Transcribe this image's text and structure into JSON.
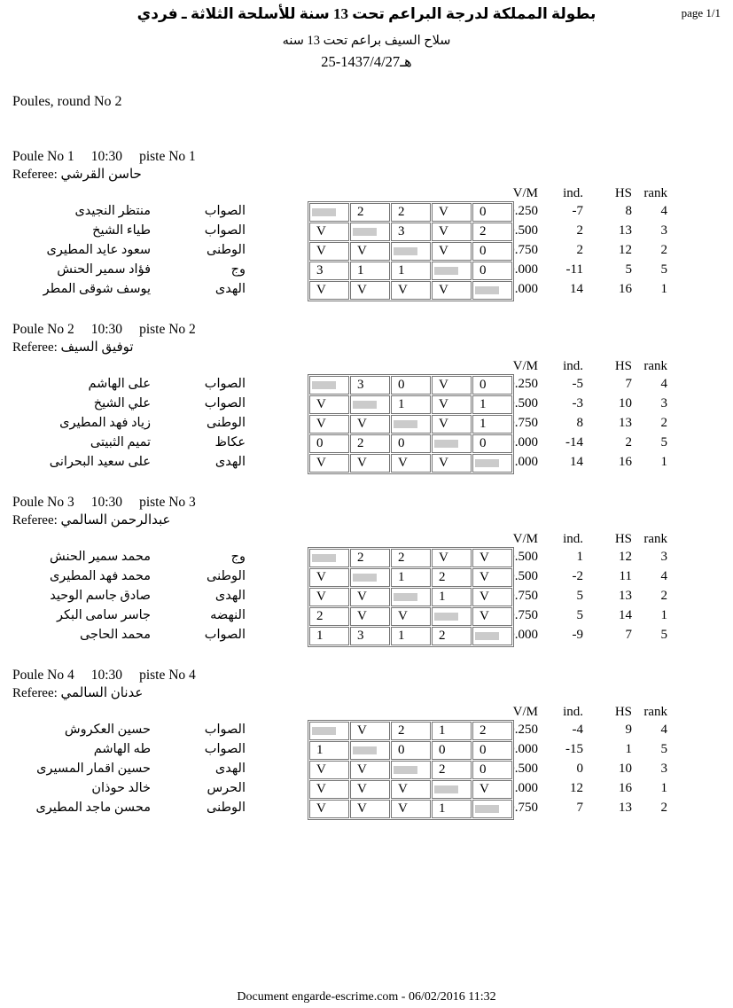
{
  "page": {
    "page_label": "page 1/1",
    "title_line1": "بطولة المملكة لدرجة البراعم تحت 13 سنة للأسلحة الثلاثة ـ فردي",
    "title_line2": "سلاح السيف براعم تحت 13 سنه",
    "title_line3": "هـ1437/4/27-25",
    "section_title": "Poules, round No 2",
    "footer": "Document engarde-escrime.com  - 06/02/2016 11:32"
  },
  "colors": {
    "self_cell_fill": "#cbcbcb",
    "grid_border": "#757575",
    "text": "#000000",
    "background": "#ffffff"
  },
  "stats_headers": [
    "V/M",
    "ind.",
    "HS",
    "rank"
  ],
  "poules": [
    {
      "title": "Poule No 1",
      "time": "10:30",
      "piste": "piste No  1",
      "referee_label": "Referee:",
      "referee": "حاسن القرشي",
      "fencers": [
        {
          "name": "منتظر النجيدى",
          "club": "الصواب",
          "scores": [
            null,
            "2",
            "2",
            "V",
            "0"
          ],
          "vm": "0.250",
          "ind": "-7",
          "hs": "8",
          "rank": "4"
        },
        {
          "name": "طياء الشيخ",
          "club": "الصواب",
          "scores": [
            "V",
            null,
            "3",
            "V",
            "2"
          ],
          "vm": "0.500",
          "ind": "2",
          "hs": "13",
          "rank": "3"
        },
        {
          "name": "سعود عايد المطيرى",
          "club": "الوطنى",
          "scores": [
            "V",
            "V",
            null,
            "V",
            "0"
          ],
          "vm": "0.750",
          "ind": "2",
          "hs": "12",
          "rank": "2"
        },
        {
          "name": "فؤاد سمير الحنش",
          "club": "وج",
          "scores": [
            "3",
            "1",
            "1",
            null,
            "0"
          ],
          "vm": "0.000",
          "ind": "-11",
          "hs": "5",
          "rank": "5"
        },
        {
          "name": "يوسف شوقى المطر",
          "club": "الهدى",
          "scores": [
            "V",
            "V",
            "V",
            "V",
            null
          ],
          "vm": "1.000",
          "ind": "14",
          "hs": "16",
          "rank": "1"
        }
      ]
    },
    {
      "title": "Poule No 2",
      "time": "10:30",
      "piste": "piste No  2",
      "referee_label": "Referee:",
      "referee": "توفيق السيف",
      "fencers": [
        {
          "name": "على الهاشم",
          "club": "الصواب",
          "scores": [
            null,
            "3",
            "0",
            "V",
            "0"
          ],
          "vm": "0.250",
          "ind": "-5",
          "hs": "7",
          "rank": "4"
        },
        {
          "name": "علي الشيخ",
          "club": "الصواب",
          "scores": [
            "V",
            null,
            "1",
            "V",
            "1"
          ],
          "vm": "0.500",
          "ind": "-3",
          "hs": "10",
          "rank": "3"
        },
        {
          "name": "زياد فهد المطيرى",
          "club": "الوطنى",
          "scores": [
            "V",
            "V",
            null,
            "V",
            "1"
          ],
          "vm": "0.750",
          "ind": "8",
          "hs": "13",
          "rank": "2"
        },
        {
          "name": "تميم الثبيتى",
          "club": "عكاظ",
          "scores": [
            "0",
            "2",
            "0",
            null,
            "0"
          ],
          "vm": "0.000",
          "ind": "-14",
          "hs": "2",
          "rank": "5"
        },
        {
          "name": "على سعيد البحرانى",
          "club": "الهدى",
          "scores": [
            "V",
            "V",
            "V",
            "V",
            null
          ],
          "vm": "1.000",
          "ind": "14",
          "hs": "16",
          "rank": "1"
        }
      ]
    },
    {
      "title": "Poule No 3",
      "time": "10:30",
      "piste": "piste No  3",
      "referee_label": "Referee:",
      "referee": "عبدالرحمن السالمي",
      "fencers": [
        {
          "name": "محمد سمير الحنش",
          "club": "وج",
          "scores": [
            null,
            "2",
            "2",
            "V",
            "V"
          ],
          "vm": "0.500",
          "ind": "1",
          "hs": "12",
          "rank": "3"
        },
        {
          "name": "محمد فهد المطيرى",
          "club": "الوطنى",
          "scores": [
            "V",
            null,
            "1",
            "2",
            "V"
          ],
          "vm": "0.500",
          "ind": "-2",
          "hs": "11",
          "rank": "4"
        },
        {
          "name": "صادق جاسم الوحيد",
          "club": "الهدى",
          "scores": [
            "V",
            "V",
            null,
            "1",
            "V"
          ],
          "vm": "0.750",
          "ind": "5",
          "hs": "13",
          "rank": "2"
        },
        {
          "name": "جاسر سامى البكر",
          "club": "النهضه",
          "scores": [
            "2",
            "V",
            "V",
            null,
            "V"
          ],
          "vm": "0.750",
          "ind": "5",
          "hs": "14",
          "rank": "1"
        },
        {
          "name": "محمد الحاجى",
          "club": "الصواب",
          "scores": [
            "1",
            "3",
            "1",
            "2",
            null
          ],
          "vm": "0.000",
          "ind": "-9",
          "hs": "7",
          "rank": "5"
        }
      ]
    },
    {
      "title": "Poule No 4",
      "time": "10:30",
      "piste": "piste No  4",
      "referee_label": "Referee:",
      "referee": "عدنان السالمي",
      "fencers": [
        {
          "name": "حسين العكروش",
          "club": "الصواب",
          "scores": [
            null,
            "V",
            "2",
            "1",
            "2"
          ],
          "vm": "0.250",
          "ind": "-4",
          "hs": "9",
          "rank": "4"
        },
        {
          "name": "طه الهاشم",
          "club": "الصواب",
          "scores": [
            "1",
            null,
            "0",
            "0",
            "0"
          ],
          "vm": "0.000",
          "ind": "-15",
          "hs": "1",
          "rank": "5"
        },
        {
          "name": "حسين اقمار المسيرى",
          "club": "الهدى",
          "scores": [
            "V",
            "V",
            null,
            "2",
            "0"
          ],
          "vm": "0.500",
          "ind": "0",
          "hs": "10",
          "rank": "3"
        },
        {
          "name": "خالد حوذان",
          "club": "الحرس",
          "scores": [
            "V",
            "V",
            "V",
            null,
            "V"
          ],
          "vm": "1.000",
          "ind": "12",
          "hs": "16",
          "rank": "1"
        },
        {
          "name": "محسن ماجد المطيرى",
          "club": "الوطنى",
          "scores": [
            "V",
            "V",
            "V",
            "1",
            null
          ],
          "vm": "0.750",
          "ind": "7",
          "hs": "13",
          "rank": "2"
        }
      ]
    }
  ]
}
